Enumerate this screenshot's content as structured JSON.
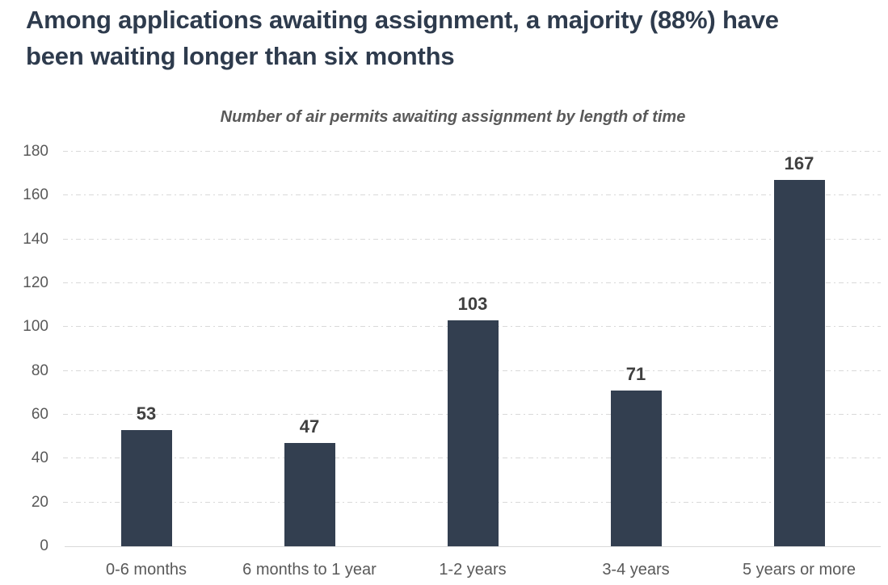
{
  "header": {
    "title": "Among applications awaiting assignment, a majority (88%) have been waiting longer than six months"
  },
  "chart_data": {
    "type": "bar",
    "title": "Number of air permits awaiting assignment by length of time",
    "categories": [
      "0-6 months",
      "6 months to 1 year",
      "1-2 years",
      "3-4 years",
      "5 years or more"
    ],
    "values": [
      53,
      47,
      103,
      71,
      167
    ],
    "xlabel": "",
    "ylabel": "",
    "ylim": [
      0,
      180
    ],
    "ytick_step": 20,
    "grid": "horizontal-dash-dot",
    "legend": "none",
    "bar_color": "#333F50",
    "title_color": "#2E3B4D",
    "subtitle_color": "#595959",
    "axis_label_color": "#595959",
    "value_label_color": "#404040",
    "gridline_color": "#D9D9D9"
  }
}
